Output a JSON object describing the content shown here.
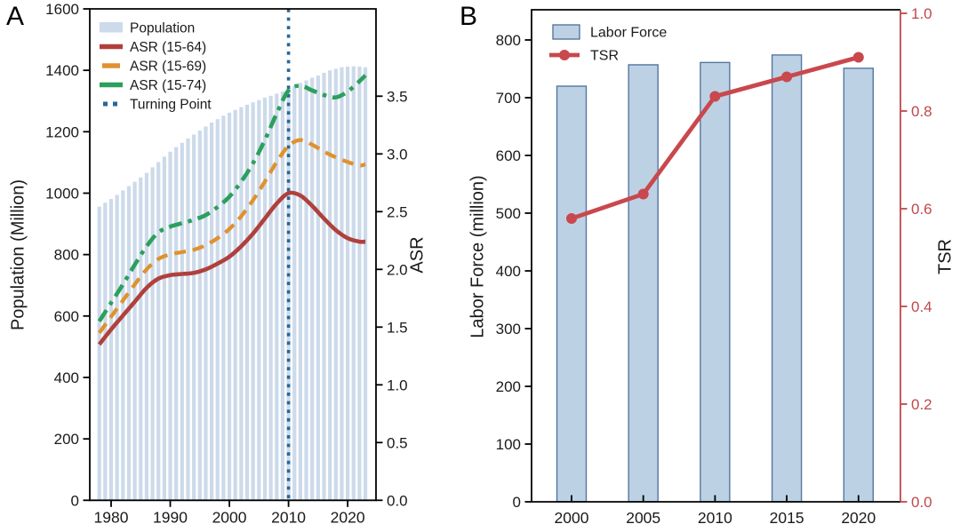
{
  "panels": {
    "a_label": "A",
    "b_label": "B"
  },
  "colors": {
    "axis": "#000000",
    "tick_text": "#1a1a1a",
    "population_bar": "#ccdaea",
    "asr_15_64": "#b0403c",
    "asr_15_69": "#e0912f",
    "asr_15_74": "#2ba05c",
    "turning_point": "#26689a",
    "labor_bar_fill": "#bdd1e5",
    "labor_bar_stroke": "#54779f",
    "tsr_line": "#c9484d",
    "tsr_axis": "#c0484c"
  },
  "chart_data": [
    {
      "panel": "A",
      "type": "bar+line",
      "title": "",
      "xlabel": "",
      "ylabel_left": "Population (Million)",
      "ylabel_right": "ASR",
      "xlim": [
        1976.4,
        2024.8
      ],
      "x_ticks": [
        1980,
        1990,
        2000,
        2010,
        2020
      ],
      "ylim_left": [
        0,
        1600
      ],
      "yticks_left": [
        0,
        200,
        400,
        600,
        800,
        1000,
        1200,
        1400,
        1600
      ],
      "ylim_right": [
        0,
        4.25
      ],
      "yticks_right": [
        0.0,
        0.5,
        1.0,
        1.5,
        2.0,
        2.5,
        3.0,
        3.5
      ],
      "grid": false,
      "legend_position": "upper-left",
      "legend": [
        "Population",
        "ASR (15-64)",
        "ASR (15-69)",
        "ASR (15-74)",
        "Turning Point"
      ],
      "bars": {
        "name": "Population",
        "years": [
          1978,
          1979,
          1980,
          1981,
          1982,
          1983,
          1984,
          1985,
          1986,
          1987,
          1988,
          1989,
          1990,
          1991,
          1992,
          1993,
          1994,
          1995,
          1996,
          1997,
          1998,
          1999,
          2000,
          2001,
          2002,
          2003,
          2004,
          2005,
          2006,
          2007,
          2008,
          2009,
          2010,
          2011,
          2012,
          2013,
          2014,
          2015,
          2016,
          2017,
          2018,
          2019,
          2020,
          2021,
          2022,
          2023
        ],
        "values": [
          956,
          969,
          981,
          994,
          1009,
          1023,
          1037,
          1051,
          1066,
          1084,
          1101,
          1119,
          1135,
          1150,
          1164,
          1178,
          1191,
          1204,
          1217,
          1230,
          1241,
          1252,
          1262,
          1271,
          1280,
          1288,
          1296,
          1303,
          1311,
          1317,
          1324,
          1331,
          1340,
          1349,
          1359,
          1367,
          1376,
          1383,
          1392,
          1400,
          1405,
          1410,
          1412,
          1413,
          1412,
          1410
        ]
      },
      "series": [
        {
          "name": "ASR (15-64)",
          "style": "solid",
          "x": [
            1978,
            1980,
            1982,
            1984,
            1986,
            1988,
            1990,
            1992,
            1994,
            1996,
            1998,
            2000,
            2002,
            2004,
            2006,
            2008,
            2010,
            2012,
            2014,
            2016,
            2018,
            2020,
            2022,
            2023
          ],
          "y": [
            1.35,
            1.48,
            1.6,
            1.72,
            1.84,
            1.92,
            1.95,
            1.96,
            1.97,
            2.0,
            2.05,
            2.11,
            2.2,
            2.31,
            2.44,
            2.57,
            2.66,
            2.64,
            2.55,
            2.44,
            2.34,
            2.27,
            2.24,
            2.24
          ]
        },
        {
          "name": "ASR (15-69)",
          "style": "dashed",
          "x": [
            1978,
            1980,
            1982,
            1984,
            1986,
            1988,
            1990,
            1992,
            1994,
            1996,
            1998,
            2000,
            2002,
            2004,
            2006,
            2008,
            2010,
            2012,
            2014,
            2016,
            2018,
            2020,
            2022,
            2023
          ],
          "y": [
            1.45,
            1.59,
            1.73,
            1.87,
            2.0,
            2.09,
            2.13,
            2.15,
            2.17,
            2.21,
            2.27,
            2.35,
            2.46,
            2.6,
            2.76,
            2.93,
            3.07,
            3.12,
            3.08,
            3.02,
            2.97,
            2.93,
            2.9,
            2.91
          ]
        },
        {
          "name": "ASR (15-74)",
          "style": "dashdot",
          "x": [
            1978,
            1980,
            1982,
            1984,
            1986,
            1988,
            1990,
            1992,
            1994,
            1996,
            1998,
            2000,
            2002,
            2004,
            2006,
            2008,
            2010,
            2012,
            2014,
            2016,
            2018,
            2020,
            2022,
            2023
          ],
          "y": [
            1.55,
            1.71,
            1.87,
            2.04,
            2.2,
            2.32,
            2.37,
            2.4,
            2.43,
            2.47,
            2.54,
            2.63,
            2.76,
            2.92,
            3.12,
            3.35,
            3.55,
            3.59,
            3.55,
            3.51,
            3.49,
            3.54,
            3.63,
            3.68
          ]
        }
      ],
      "turning_point": {
        "name": "Turning Point",
        "year": 2010
      }
    },
    {
      "panel": "B",
      "type": "bar+line",
      "title": "",
      "xlabel": "",
      "ylabel_left": "Labor Force (million)",
      "ylabel_right": "TSR",
      "categories": [
        "2000",
        "2005",
        "2010",
        "2015",
        "2020"
      ],
      "ylim_left": [
        0,
        852
      ],
      "yticks_left": [
        0,
        100,
        200,
        300,
        400,
        500,
        600,
        700,
        800
      ],
      "ylim_right": [
        0,
        1.0
      ],
      "yticks_right": [
        0.0,
        0.2,
        0.4,
        0.6,
        0.8,
        1.0
      ],
      "grid": false,
      "legend_position": "upper-left",
      "legend": [
        "Labor Force",
        "TSR"
      ],
      "bars": {
        "name": "Labor Force",
        "values": [
          720,
          757,
          761,
          774,
          751
        ]
      },
      "line": {
        "name": "TSR",
        "values": [
          0.58,
          0.63,
          0.83,
          0.87,
          0.91
        ]
      }
    }
  ]
}
